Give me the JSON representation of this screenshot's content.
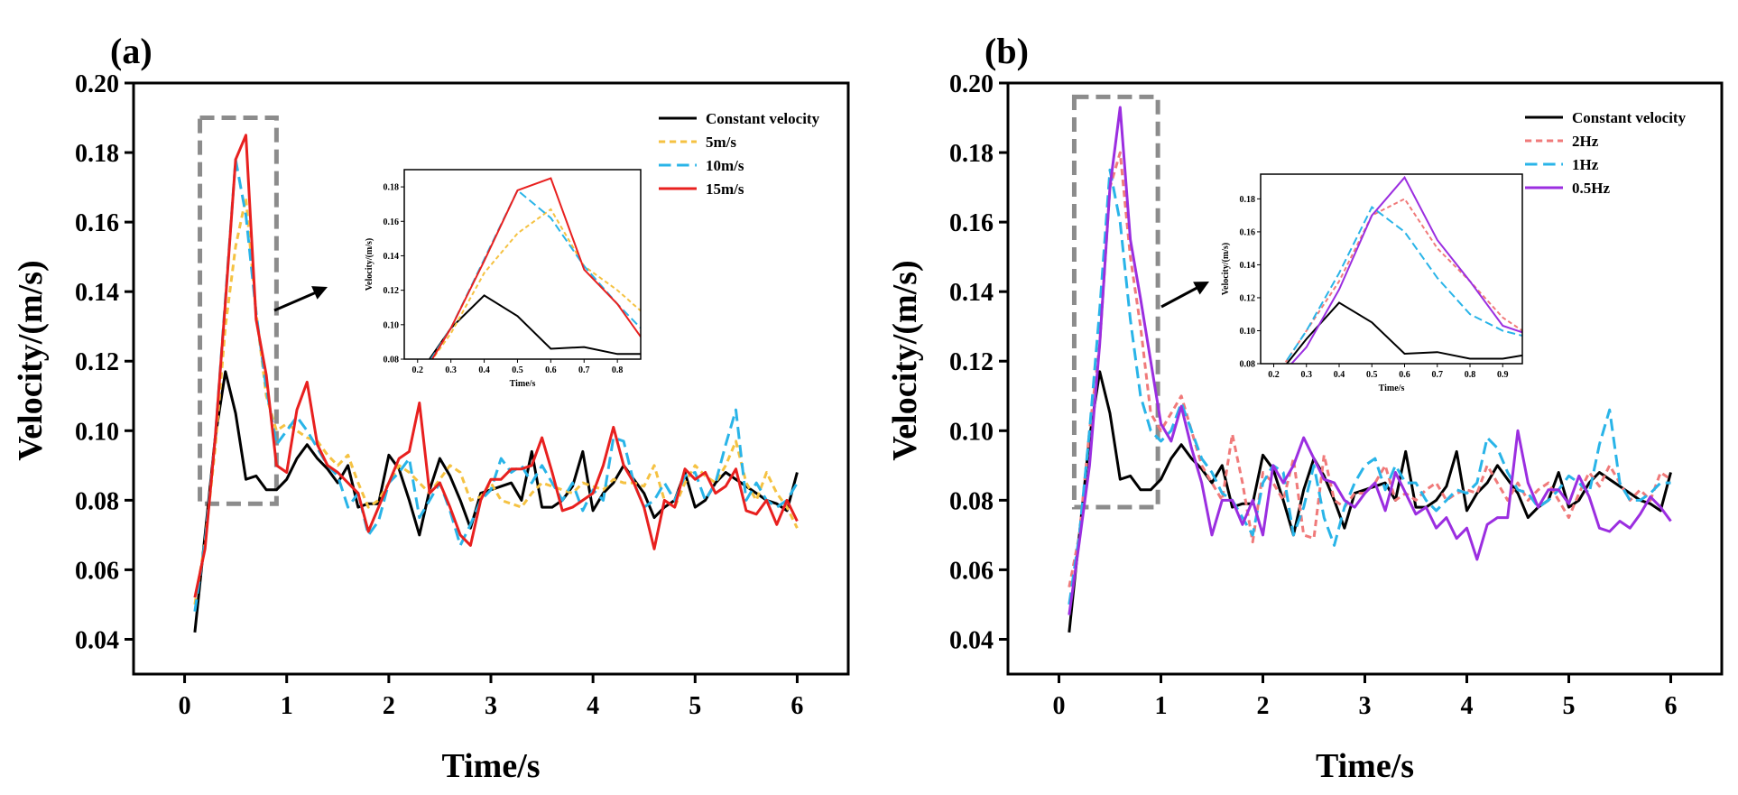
{
  "chart_data": [
    {
      "type": "line",
      "panel_label": "(a)",
      "xlabel": "Time/s",
      "ylabel": "Velocity/(m/s)",
      "xlim": [
        -0.5,
        6.5
      ],
      "ylim": [
        0.03,
        0.2
      ],
      "xticks": [
        0,
        1,
        2,
        3,
        4,
        5,
        6
      ],
      "yticks": [
        0.04,
        0.06,
        0.08,
        0.1,
        0.12,
        0.14,
        0.16,
        0.18,
        0.2
      ],
      "ytick_labels": [
        "0.04",
        "0.06",
        "0.08",
        "0.10",
        "0.12",
        "0.14",
        "0.16",
        "0.18",
        "0.20"
      ],
      "legend_position": "top-right",
      "highlight_box": {
        "x": [
          0.15,
          0.9
        ],
        "y": [
          0.079,
          0.19
        ]
      },
      "x": [
        0.1,
        0.2,
        0.3,
        0.4,
        0.5,
        0.6,
        0.7,
        0.8,
        0.9,
        1.0,
        1.1,
        1.2,
        1.3,
        1.4,
        1.5,
        1.6,
        1.7,
        1.8,
        1.9,
        2.0,
        2.1,
        2.2,
        2.3,
        2.4,
        2.5,
        2.6,
        2.7,
        2.8,
        2.9,
        3.0,
        3.1,
        3.2,
        3.3,
        3.4,
        3.5,
        3.6,
        3.7,
        3.8,
        3.9,
        4.0,
        4.1,
        4.2,
        4.3,
        4.4,
        4.5,
        4.6,
        4.7,
        4.8,
        4.9,
        5.0,
        5.1,
        5.2,
        5.3,
        5.4,
        5.5,
        5.6,
        5.7,
        5.8,
        5.9,
        6.0
      ],
      "series": [
        {
          "name": "Constant velocity",
          "color": "#000000",
          "style": "solid",
          "values": [
            0.042,
            0.07,
            0.098,
            0.117,
            0.105,
            0.086,
            0.087,
            0.083,
            0.083,
            0.086,
            0.092,
            0.096,
            0.092,
            0.089,
            0.085,
            0.09,
            0.078,
            0.079,
            0.079,
            0.093,
            0.089,
            0.08,
            0.07,
            0.083,
            0.092,
            0.087,
            0.08,
            0.072,
            0.082,
            0.083,
            0.084,
            0.085,
            0.08,
            0.094,
            0.078,
            0.078,
            0.08,
            0.084,
            0.094,
            0.077,
            0.082,
            0.085,
            0.09,
            0.086,
            0.082,
            0.075,
            0.078,
            0.08,
            0.088,
            0.078,
            0.08,
            0.085,
            0.088,
            0.086,
            0.084,
            0.082,
            0.08,
            0.079,
            0.077,
            0.088
          ]
        },
        {
          "name": "5m/s",
          "color": "#f5c242",
          "style": "dotted",
          "values": [
            0.05,
            0.068,
            0.095,
            0.13,
            0.153,
            0.167,
            0.134,
            0.11,
            0.1,
            0.102,
            0.1,
            0.098,
            0.097,
            0.093,
            0.09,
            0.093,
            0.085,
            0.078,
            0.08,
            0.085,
            0.09,
            0.088,
            0.085,
            0.082,
            0.086,
            0.09,
            0.088,
            0.08,
            0.081,
            0.085,
            0.08,
            0.079,
            0.078,
            0.082,
            0.085,
            0.084,
            0.083,
            0.082,
            0.085,
            0.084,
            0.083,
            0.086,
            0.085,
            0.085,
            0.084,
            0.09,
            0.08,
            0.078,
            0.085,
            0.09,
            0.087,
            0.085,
            0.09,
            0.097,
            0.085,
            0.08,
            0.088,
            0.082,
            0.078,
            0.072
          ]
        },
        {
          "name": "10m/s",
          "color": "#29b4e8",
          "style": "dashed",
          "values": [
            0.048,
            0.068,
            0.098,
            0.138,
            0.178,
            0.162,
            0.134,
            0.112,
            0.096,
            0.1,
            0.104,
            0.1,
            0.095,
            0.09,
            0.087,
            0.078,
            0.082,
            0.07,
            0.074,
            0.085,
            0.088,
            0.092,
            0.075,
            0.08,
            0.085,
            0.077,
            0.067,
            0.073,
            0.08,
            0.083,
            0.092,
            0.088,
            0.09,
            0.085,
            0.09,
            0.085,
            0.08,
            0.085,
            0.077,
            0.083,
            0.08,
            0.098,
            0.097,
            0.085,
            0.078,
            0.08,
            0.085,
            0.08,
            0.087,
            0.088,
            0.08,
            0.085,
            0.096,
            0.106,
            0.08,
            0.085,
            0.08,
            0.078,
            0.08,
            0.085
          ]
        },
        {
          "name": "15m/s",
          "color": "#e8201f",
          "style": "solid",
          "values": [
            0.052,
            0.066,
            0.098,
            0.137,
            0.178,
            0.185,
            0.132,
            0.116,
            0.09,
            0.088,
            0.106,
            0.114,
            0.096,
            0.09,
            0.088,
            0.085,
            0.082,
            0.071,
            0.078,
            0.085,
            0.092,
            0.094,
            0.108,
            0.082,
            0.085,
            0.078,
            0.07,
            0.067,
            0.08,
            0.086,
            0.086,
            0.089,
            0.089,
            0.09,
            0.098,
            0.088,
            0.077,
            0.078,
            0.08,
            0.082,
            0.09,
            0.101,
            0.09,
            0.085,
            0.078,
            0.066,
            0.08,
            0.078,
            0.089,
            0.086,
            0.088,
            0.082,
            0.084,
            0.089,
            0.077,
            0.076,
            0.08,
            0.073,
            0.08,
            0.074
          ]
        }
      ],
      "inset": {
        "xlabel": "Time/s",
        "ylabel": "Velocity/(m/s)",
        "xlim": [
          0.16,
          0.87
        ],
        "ylim": [
          0.08,
          0.19
        ],
        "xticks": [
          0.2,
          0.3,
          0.4,
          0.5,
          0.6,
          0.7,
          0.8
        ],
        "xtick_labels": [
          "0.2",
          "0.3",
          "0.4",
          "0.5",
          "0.6",
          "0.7",
          "0.8"
        ],
        "yticks": [
          0.08,
          0.1,
          0.12,
          0.14,
          0.16,
          0.18
        ],
        "ytick_labels": [
          "0.08",
          "0.10",
          "0.12",
          "0.14",
          "0.16",
          "0.18"
        ],
        "x": [
          0.2,
          0.3,
          0.4,
          0.5,
          0.6,
          0.7,
          0.8,
          0.87
        ],
        "series": [
          {
            "name": "Constant velocity",
            "color": "#000000",
            "style": "solid",
            "values": [
              0.07,
              0.098,
              0.117,
              0.105,
              0.086,
              0.087,
              0.083,
              0.083
            ]
          },
          {
            "name": "5m/s",
            "color": "#f5c242",
            "style": "dotted",
            "values": [
              0.068,
              0.095,
              0.13,
              0.153,
              0.167,
              0.134,
              0.12,
              0.108
            ]
          },
          {
            "name": "10m/s",
            "color": "#29b4e8",
            "style": "dashed",
            "values": [
              0.068,
              0.098,
              0.138,
              0.178,
              0.162,
              0.134,
              0.112,
              0.098
            ]
          },
          {
            "name": "15m/s",
            "color": "#e8201f",
            "style": "solid",
            "values": [
              0.066,
              0.098,
              0.137,
              0.178,
              0.185,
              0.132,
              0.112,
              0.093
            ]
          }
        ]
      }
    },
    {
      "type": "line",
      "panel_label": "(b)",
      "xlabel": "Time/s",
      "ylabel": "Velocity/(m/s)",
      "xlim": [
        -0.5,
        6.5
      ],
      "ylim": [
        0.03,
        0.2
      ],
      "xticks": [
        0,
        1,
        2,
        3,
        4,
        5,
        6
      ],
      "yticks": [
        0.04,
        0.06,
        0.08,
        0.1,
        0.12,
        0.14,
        0.16,
        0.18,
        0.2
      ],
      "ytick_labels": [
        "0.04",
        "0.06",
        "0.08",
        "0.10",
        "0.12",
        "0.14",
        "0.16",
        "0.18",
        "0.20"
      ],
      "legend_position": "top-right",
      "highlight_box": {
        "x": [
          0.15,
          0.97
        ],
        "y": [
          0.078,
          0.196
        ]
      },
      "x": [
        0.1,
        0.2,
        0.3,
        0.4,
        0.5,
        0.6,
        0.7,
        0.8,
        0.9,
        1.0,
        1.1,
        1.2,
        1.3,
        1.4,
        1.5,
        1.6,
        1.7,
        1.8,
        1.9,
        2.0,
        2.1,
        2.2,
        2.3,
        2.4,
        2.5,
        2.6,
        2.7,
        2.8,
        2.9,
        3.0,
        3.1,
        3.2,
        3.3,
        3.4,
        3.5,
        3.6,
        3.7,
        3.8,
        3.9,
        4.0,
        4.1,
        4.2,
        4.3,
        4.4,
        4.5,
        4.6,
        4.7,
        4.8,
        4.9,
        5.0,
        5.1,
        5.2,
        5.3,
        5.4,
        5.5,
        5.6,
        5.7,
        5.8,
        5.9,
        6.0
      ],
      "series": [
        {
          "name": "Constant velocity",
          "color": "#000000",
          "style": "solid",
          "values": [
            0.042,
            0.07,
            0.098,
            0.117,
            0.105,
            0.086,
            0.087,
            0.083,
            0.083,
            0.086,
            0.092,
            0.096,
            0.092,
            0.089,
            0.085,
            0.09,
            0.078,
            0.079,
            0.079,
            0.093,
            0.089,
            0.08,
            0.07,
            0.083,
            0.092,
            0.087,
            0.08,
            0.072,
            0.082,
            0.083,
            0.084,
            0.085,
            0.08,
            0.094,
            0.078,
            0.078,
            0.08,
            0.084,
            0.094,
            0.077,
            0.082,
            0.085,
            0.09,
            0.086,
            0.082,
            0.075,
            0.078,
            0.08,
            0.088,
            0.078,
            0.08,
            0.085,
            0.088,
            0.086,
            0.084,
            0.082,
            0.08,
            0.079,
            0.077,
            0.088
          ]
        },
        {
          "name": "2Hz",
          "color": "#f07a7a",
          "style": "dotted",
          "values": [
            0.055,
            0.07,
            0.1,
            0.125,
            0.17,
            0.18,
            0.15,
            0.13,
            0.105,
            0.1,
            0.105,
            0.11,
            0.1,
            0.09,
            0.085,
            0.08,
            0.099,
            0.085,
            0.068,
            0.088,
            0.085,
            0.08,
            0.092,
            0.07,
            0.069,
            0.093,
            0.08,
            0.078,
            0.082,
            0.082,
            0.085,
            0.09,
            0.08,
            0.082,
            0.08,
            0.083,
            0.085,
            0.08,
            0.082,
            0.083,
            0.082,
            0.09,
            0.085,
            0.08,
            0.085,
            0.08,
            0.083,
            0.085,
            0.08,
            0.075,
            0.082,
            0.088,
            0.084,
            0.09,
            0.085,
            0.08,
            0.083,
            0.08,
            0.088,
            0.086
          ]
        },
        {
          "name": "1Hz",
          "color": "#29b4e8",
          "style": "dashed",
          "values": [
            0.05,
            0.07,
            0.1,
            0.135,
            0.175,
            0.16,
            0.132,
            0.11,
            0.1,
            0.097,
            0.1,
            0.108,
            0.1,
            0.092,
            0.088,
            0.082,
            0.08,
            0.075,
            0.07,
            0.085,
            0.09,
            0.088,
            0.07,
            0.078,
            0.09,
            0.075,
            0.067,
            0.078,
            0.085,
            0.09,
            0.092,
            0.083,
            0.09,
            0.085,
            0.085,
            0.08,
            0.077,
            0.08,
            0.083,
            0.082,
            0.085,
            0.098,
            0.095,
            0.088,
            0.083,
            0.082,
            0.078,
            0.08,
            0.083,
            0.087,
            0.085,
            0.082,
            0.096,
            0.106,
            0.085,
            0.08,
            0.08,
            0.082,
            0.085,
            0.085
          ]
        },
        {
          "name": "0.5Hz",
          "color": "#9b2ee0",
          "style": "solid",
          "values": [
            0.047,
            0.068,
            0.09,
            0.125,
            0.17,
            0.193,
            0.155,
            0.138,
            0.12,
            0.102,
            0.097,
            0.107,
            0.095,
            0.085,
            0.07,
            0.08,
            0.08,
            0.073,
            0.08,
            0.07,
            0.09,
            0.085,
            0.09,
            0.098,
            0.092,
            0.086,
            0.085,
            0.08,
            0.078,
            0.082,
            0.085,
            0.077,
            0.088,
            0.082,
            0.076,
            0.078,
            0.072,
            0.075,
            0.069,
            0.072,
            0.063,
            0.073,
            0.075,
            0.075,
            0.1,
            0.085,
            0.078,
            0.083,
            0.083,
            0.079,
            0.087,
            0.081,
            0.072,
            0.071,
            0.074,
            0.072,
            0.076,
            0.081,
            0.078,
            0.074
          ]
        }
      ],
      "inset": {
        "xlabel": "Time/s",
        "ylabel": "Velocity/(m/s)",
        "xlim": [
          0.16,
          0.96
        ],
        "ylim": [
          0.08,
          0.195
        ],
        "xticks": [
          0.2,
          0.3,
          0.4,
          0.5,
          0.6,
          0.7,
          0.8,
          0.9
        ],
        "xtick_labels": [
          "0.2",
          "0.3",
          "0.4",
          "0.5",
          "0.6",
          "0.7",
          "0.8",
          "0.9"
        ],
        "yticks": [
          0.08,
          0.1,
          0.12,
          0.14,
          0.16,
          0.18
        ],
        "ytick_labels": [
          "0.08",
          "0.10",
          "0.12",
          "0.14",
          "0.16",
          "0.18"
        ],
        "x": [
          0.2,
          0.3,
          0.4,
          0.5,
          0.6,
          0.7,
          0.8,
          0.9,
          0.96
        ],
        "series": [
          {
            "name": "Constant velocity",
            "color": "#000000",
            "style": "solid",
            "values": [
              0.07,
              0.095,
              0.117,
              0.105,
              0.086,
              0.087,
              0.083,
              0.083,
              0.085
            ]
          },
          {
            "name": "2Hz",
            "color": "#f07a7a",
            "style": "dotted",
            "values": [
              0.07,
              0.1,
              0.13,
              0.17,
              0.18,
              0.15,
              0.13,
              0.108,
              0.1
            ]
          },
          {
            "name": "1Hz",
            "color": "#29b4e8",
            "style": "dashed",
            "values": [
              0.07,
              0.1,
              0.135,
              0.175,
              0.16,
              0.132,
              0.11,
              0.1,
              0.097
            ]
          },
          {
            "name": "0.5Hz",
            "color": "#9b2ee0",
            "style": "solid",
            "values": [
              0.068,
              0.09,
              0.125,
              0.17,
              0.193,
              0.155,
              0.13,
              0.103,
              0.099
            ]
          }
        ]
      }
    }
  ]
}
